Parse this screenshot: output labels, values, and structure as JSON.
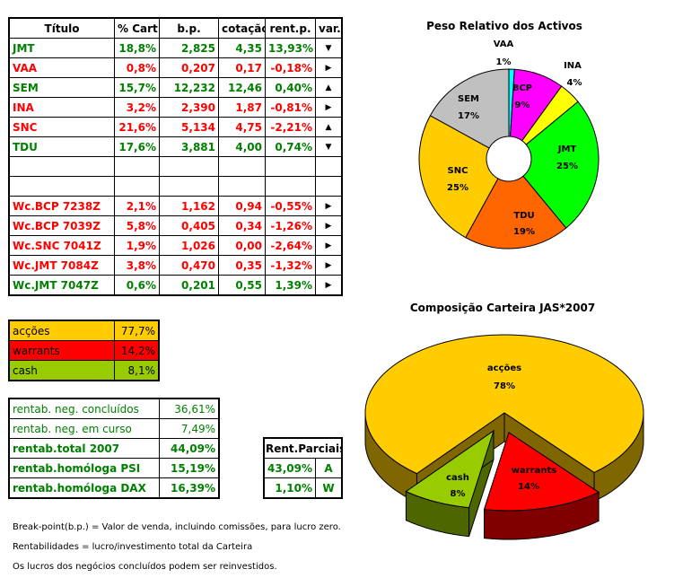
{
  "main_table": {
    "headers": [
      "Título",
      "% Cart",
      "b.p.",
      "cotação",
      "rent.p.",
      "var."
    ],
    "rows": [
      {
        "titulo": "JMT",
        "cart": "18,8%",
        "bp": "2,825",
        "cotacao": "4,35",
        "rent": "13,93%",
        "var": "down",
        "color": "green"
      },
      {
        "titulo": "VAA",
        "cart": "0,8%",
        "bp": "0,207",
        "cotacao": "0,17",
        "rent": "-0,18%",
        "var": "right",
        "color": "red"
      },
      {
        "titulo": "SEM",
        "cart": "15,7%",
        "bp": "12,232",
        "cotacao": "12,46",
        "rent": "0,40%",
        "var": "up",
        "color": "green"
      },
      {
        "titulo": "INA",
        "cart": "3,2%",
        "bp": "2,390",
        "cotacao": "1,87",
        "rent": "-0,81%",
        "var": "right",
        "color": "red"
      },
      {
        "titulo": "SNC",
        "cart": "21,6%",
        "bp": "5,134",
        "cotacao": "4,75",
        "rent": "-2,21%",
        "var": "up",
        "color": "red"
      },
      {
        "titulo": "TDU",
        "cart": "17,6%",
        "bp": "3,881",
        "cotacao": "4,00",
        "rent": "0,74%",
        "var": "down",
        "color": "green"
      },
      {
        "titulo": "",
        "cart": "",
        "bp": "",
        "cotacao": "",
        "rent": "",
        "var": "",
        "color": "green"
      },
      {
        "titulo": "",
        "cart": "",
        "bp": "",
        "cotacao": "",
        "rent": "",
        "var": "",
        "color": "green"
      },
      {
        "titulo": "Wc.BCP 7238Z",
        "cart": "2,1%",
        "bp": "1,162",
        "cotacao": "0,94",
        "rent": "-0,55%",
        "var": "right",
        "color": "red"
      },
      {
        "titulo": "Wc.BCP 7039Z",
        "cart": "5,8%",
        "bp": "0,405",
        "cotacao": "0,34",
        "rent": "-1,26%",
        "var": "right",
        "color": "red"
      },
      {
        "titulo": "Wc.SNC 7041Z",
        "cart": "1,9%",
        "bp": "1,026",
        "cotacao": "0,00",
        "rent": "-2,64%",
        "var": "right",
        "color": "red"
      },
      {
        "titulo": "Wc.JMT 7084Z",
        "cart": "3,8%",
        "bp": "0,470",
        "cotacao": "0,35",
        "rent": "-1,32%",
        "var": "right",
        "color": "red"
      },
      {
        "titulo": "Wc.JMT 7047Z",
        "cart": "0,6%",
        "bp": "0,201",
        "cotacao": "0,55",
        "rent": "1,39%",
        "var": "right",
        "color": "green"
      }
    ]
  },
  "allocation": [
    {
      "label": "acções",
      "value": "77,7%",
      "color": "#ffcc00"
    },
    {
      "label": "warrants",
      "value": "14,2%",
      "color": "#ff0000"
    },
    {
      "label": "cash",
      "value": "8,1%",
      "color": "#99cc00"
    }
  ],
  "returns": [
    {
      "label": "rentab. neg. concluídos",
      "value": "36,61%",
      "bold": false
    },
    {
      "label": "rentab. neg. em curso",
      "value": "7,49%",
      "bold": false
    },
    {
      "label": "rentab.total 2007",
      "value": "44,09%",
      "bold": true
    },
    {
      "label": "rentab.homóloga PSI",
      "value": "15,19%",
      "bold": true
    },
    {
      "label": "rentab.homóloga DAX",
      "value": "16,39%",
      "bold": true
    }
  ],
  "partial": {
    "header": "Rent.Parciais",
    "rows": [
      {
        "value": "43,09%",
        "code": "A"
      },
      {
        "value": "1,10%",
        "code": "W"
      }
    ]
  },
  "notes": [
    "Break-point(b.p.) = Valor de venda, incluindo comissões, para lucro zero.",
    "Rentabilidades = lucro/investimento total da Carteira",
    "Os lucros dos negócios concluídos podem ser reinvestidos."
  ],
  "chart_data": [
    {
      "type": "pie",
      "title": "Peso Relativo dos Activos",
      "style": "doughnut",
      "categories": [
        "VAA",
        "BCP",
        "INA",
        "JMT",
        "TDU",
        "SNC",
        "SEM"
      ],
      "values": [
        1,
        9,
        4,
        25,
        19,
        25,
        17
      ],
      "labels": [
        "1%",
        "9%",
        "4%",
        "25%",
        "19%",
        "25%",
        "17%"
      ],
      "colors": [
        "#00ffff",
        "#ff00ff",
        "#ffff00",
        "#00ff00",
        "#ff6600",
        "#ffcc00",
        "#c0c0c0"
      ]
    },
    {
      "type": "pie",
      "title": "Composição Carteira JAS*2007",
      "style": "3d-exploded",
      "categories": [
        "acções",
        "warrants",
        "cash"
      ],
      "values": [
        78,
        14,
        8
      ],
      "labels": [
        "78%",
        "14%",
        "8%"
      ],
      "colors": [
        "#ffcc00",
        "#ff0000",
        "#99cc00"
      ],
      "side_colors": [
        "#806600",
        "#800000",
        "#4d6600"
      ]
    }
  ]
}
